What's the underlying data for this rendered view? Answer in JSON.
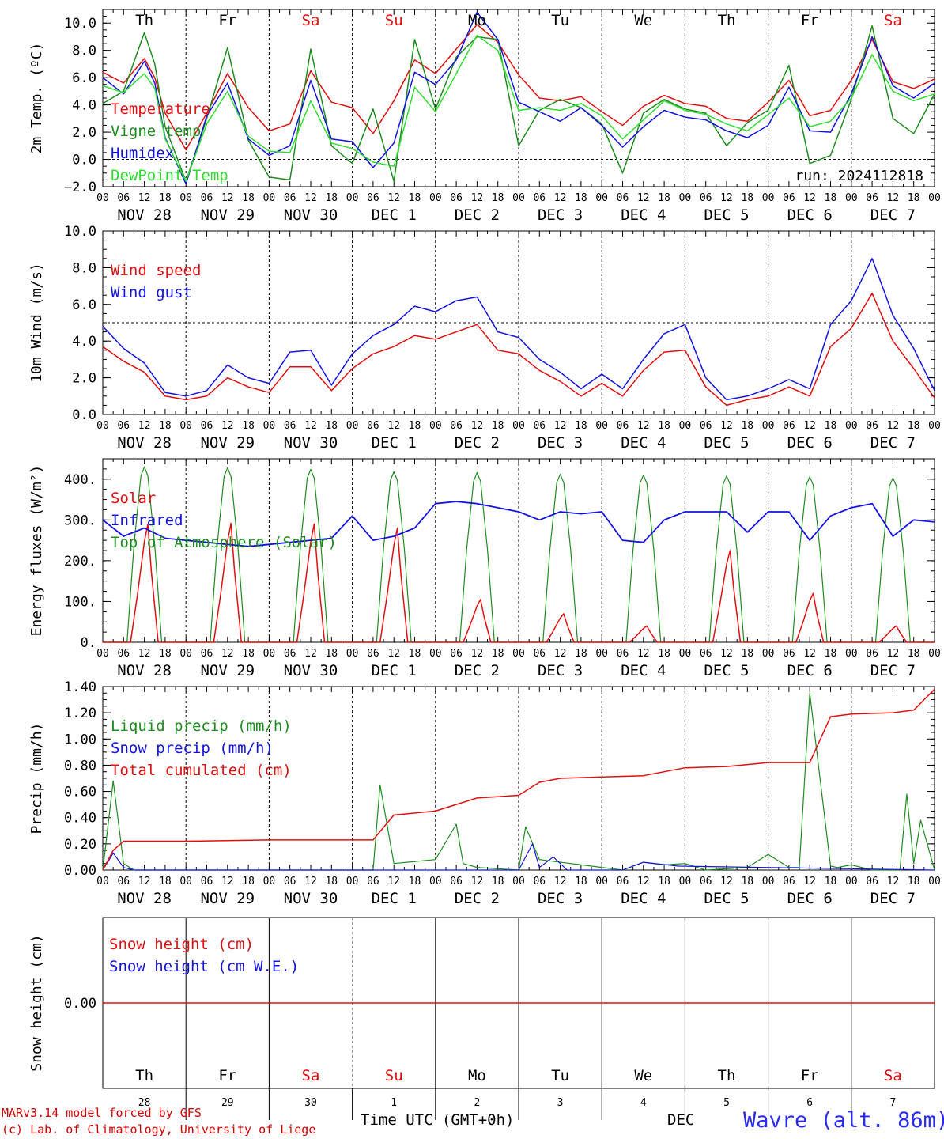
{
  "colors": {
    "red": "#e01010",
    "dkgreen": "#1e8c1e",
    "blue": "#1414e0",
    "ltgreen": "#32dc32",
    "weekend": "#e01010",
    "weekday": "#000000"
  },
  "days": [
    {
      "name": "Th",
      "month": "NOV",
      "date": "28",
      "weekend": false
    },
    {
      "name": "Fr",
      "month": "NOV",
      "date": "29",
      "weekend": false
    },
    {
      "name": "Sa",
      "month": "NOV",
      "date": "30",
      "weekend": true
    },
    {
      "name": "Su",
      "month": "DEC",
      "date": "1",
      "weekend": true
    },
    {
      "name": "Mo",
      "month": "DEC",
      "date": "2",
      "weekend": false
    },
    {
      "name": "Tu",
      "month": "DEC",
      "date": "3",
      "weekend": false
    },
    {
      "name": "We",
      "month": "DEC",
      "date": "4",
      "weekend": false
    },
    {
      "name": "Th",
      "month": "DEC",
      "date": "5",
      "weekend": false
    },
    {
      "name": "Fr",
      "month": "DEC",
      "date": "6",
      "weekend": false
    },
    {
      "name": "Sa",
      "month": "DEC",
      "date": "7",
      "weekend": true
    }
  ],
  "hour_ticks": [
    "00",
    "06",
    "12",
    "18"
  ],
  "footer": {
    "model": "MARv3.14 model forced by GFS",
    "credit": "(c) Lab. of Climatology, University of Liege",
    "xlabel": "Time UTC (GMT+0h)",
    "month": "DEC",
    "station": "Wavre (alt. 86m)"
  },
  "chart_data": [
    {
      "type": "line",
      "ylabel": "2m Temp. (ºC)",
      "ylim": [
        -2,
        11
      ],
      "yticks": [
        -2,
        0,
        2,
        4,
        6,
        8,
        10
      ],
      "ytick_labels": [
        "−2.0",
        "0.0",
        "2.0",
        "4.0",
        "6.0",
        "8.0",
        "10.0"
      ],
      "refline": 0,
      "annotation": "run: 2024112818",
      "x_hours": [
        0,
        6,
        12,
        15,
        18,
        24,
        30,
        36,
        42,
        48,
        54,
        60,
        66,
        72,
        78,
        84,
        90,
        96,
        102,
        108,
        114,
        120,
        126,
        132,
        138,
        144,
        150,
        156,
        162,
        168,
        174,
        180,
        186,
        192,
        198,
        204,
        210,
        216,
        222,
        228,
        234,
        240
      ],
      "series": [
        {
          "name": "Temperature",
          "color": "red",
          "values": [
            6.4,
            5.6,
            7.4,
            6.0,
            3.4,
            0.7,
            3.4,
            6.3,
            3.8,
            2.1,
            2.6,
            6.5,
            4.2,
            3.8,
            1.9,
            4.3,
            7.3,
            6.3,
            8.1,
            9.9,
            8.6,
            6.2,
            4.5,
            4.3,
            4.6,
            3.5,
            2.5,
            3.9,
            4.7,
            4.1,
            3.9,
            3.0,
            2.8,
            4.2,
            5.8,
            3.2,
            3.6,
            5.8,
            8.8,
            5.7,
            5.2,
            5.9
          ]
        },
        {
          "name": "Vigne temp",
          "color": "dkgreen",
          "values": [
            4.1,
            5.0,
            9.3,
            7.0,
            2.4,
            -1.6,
            3.0,
            8.2,
            1.4,
            -1.3,
            -1.5,
            8.1,
            1.0,
            -0.3,
            3.7,
            -1.6,
            8.8,
            3.7,
            7.5,
            9.0,
            8.8,
            1.0,
            3.6,
            4.4,
            3.8,
            2.6,
            -1.0,
            3.4,
            4.4,
            3.7,
            3.4,
            1.0,
            2.7,
            3.6,
            6.9,
            -0.3,
            0.3,
            4.4,
            9.8,
            3.0,
            1.9,
            4.8
          ]
        },
        {
          "name": "Humidex",
          "color": "blue",
          "values": [
            6.0,
            4.8,
            7.2,
            5.6,
            1.6,
            -1.8,
            3.2,
            5.6,
            1.5,
            0.3,
            1.0,
            5.8,
            1.5,
            1.3,
            -0.6,
            1.2,
            6.4,
            5.5,
            7.3,
            10.8,
            8.8,
            4.2,
            3.5,
            2.8,
            3.8,
            2.5,
            0.9,
            2.4,
            3.6,
            3.1,
            2.9,
            2.1,
            1.6,
            2.5,
            5.3,
            2.1,
            2.0,
            4.8,
            9.0,
            5.4,
            4.5,
            5.6
          ]
        },
        {
          "name": "DewPoint Temp",
          "color": "ltgreen",
          "values": [
            5.4,
            4.9,
            6.3,
            5.2,
            1.5,
            -1.6,
            2.6,
            5.0,
            1.7,
            0.6,
            0.5,
            4.3,
            1.2,
            0.8,
            -0.2,
            -0.5,
            5.3,
            3.5,
            6.3,
            9.1,
            8.0,
            3.6,
            3.8,
            3.6,
            4.1,
            3.2,
            1.5,
            2.9,
            4.3,
            3.6,
            3.3,
            2.6,
            2.1,
            3.3,
            4.5,
            2.4,
            2.8,
            4.5,
            7.7,
            5.0,
            4.3,
            4.8
          ]
        }
      ]
    },
    {
      "type": "line",
      "ylabel": "10m Wind (m/s)",
      "ylim": [
        0,
        10
      ],
      "yticks": [
        0,
        2,
        4,
        6,
        8,
        10
      ],
      "ytick_labels": [
        "0.0",
        "2.0",
        "4.0",
        "6.0",
        "8.0",
        "10.0"
      ],
      "refline": 5,
      "x_hours": [
        0,
        6,
        12,
        18,
        24,
        30,
        36,
        42,
        48,
        54,
        60,
        66,
        72,
        78,
        84,
        90,
        96,
        102,
        108,
        114,
        120,
        126,
        132,
        138,
        144,
        150,
        156,
        162,
        168,
        174,
        180,
        186,
        192,
        198,
        204,
        210,
        216,
        222,
        228,
        234,
        240
      ],
      "series": [
        {
          "name": "Wind speed",
          "color": "red",
          "values": [
            3.7,
            2.9,
            2.3,
            1.0,
            0.8,
            1.0,
            2.0,
            1.5,
            1.2,
            2.6,
            2.6,
            1.3,
            2.5,
            3.3,
            3.7,
            4.3,
            4.1,
            4.5,
            4.9,
            3.5,
            3.3,
            2.4,
            1.8,
            1.0,
            1.7,
            1.0,
            2.4,
            3.4,
            3.5,
            1.5,
            0.5,
            0.8,
            1.0,
            1.5,
            1.0,
            3.7,
            4.7,
            6.6,
            4.0,
            2.5,
            0.9
          ]
        },
        {
          "name": "Wind gust",
          "color": "blue",
          "values": [
            4.8,
            3.6,
            2.8,
            1.2,
            1.0,
            1.3,
            2.7,
            2.0,
            1.7,
            3.4,
            3.5,
            1.6,
            3.3,
            4.3,
            4.9,
            5.9,
            5.6,
            6.2,
            6.4,
            4.5,
            4.2,
            3.0,
            2.3,
            1.4,
            2.2,
            1.4,
            3.0,
            4.4,
            4.9,
            2.0,
            0.8,
            1.0,
            1.4,
            1.9,
            1.4,
            4.9,
            6.2,
            8.5,
            5.4,
            3.6,
            1.3
          ]
        }
      ]
    },
    {
      "type": "line",
      "ylabel": "Energy fluxes (W/m²)",
      "ylim": [
        0,
        450
      ],
      "yticks": [
        0,
        100,
        200,
        300,
        400
      ],
      "ytick_labels": [
        "0.",
        "100.",
        "200.",
        "300.",
        "400."
      ],
      "series_names": [
        "Solar",
        "Infrared",
        "Top of Atmosphere (Solar)"
      ],
      "series_colors": [
        "red",
        "blue",
        "dkgreen"
      ],
      "toa_peaks": [
        430,
        428,
        424,
        418,
        416,
        412,
        410,
        408,
        406,
        403
      ],
      "solar_peaks": [
        290,
        292,
        290,
        280,
        105,
        70,
        40,
        225,
        120,
        40
      ],
      "infrared_hours": [
        0,
        6,
        12,
        18,
        24,
        30,
        36,
        42,
        48,
        54,
        60,
        66,
        72,
        78,
        84,
        90,
        96,
        102,
        108,
        114,
        120,
        126,
        132,
        138,
        144,
        150,
        156,
        162,
        168,
        174,
        180,
        186,
        192,
        198,
        204,
        210,
        216,
        222,
        228,
        234,
        240
      ],
      "infrared_values": [
        300,
        260,
        280,
        255,
        250,
        245,
        240,
        235,
        240,
        245,
        250,
        255,
        310,
        250,
        260,
        280,
        340,
        345,
        340,
        330,
        320,
        300,
        320,
        315,
        320,
        250,
        245,
        300,
        320,
        320,
        320,
        270,
        320,
        320,
        250,
        310,
        330,
        340,
        260,
        300,
        295
      ]
    },
    {
      "type": "line",
      "ylabel": "Precip (mm/h)",
      "ylim": [
        0,
        1.4
      ],
      "yticks": [
        0,
        0.2,
        0.4,
        0.6,
        0.8,
        1.0,
        1.2,
        1.4
      ],
      "ytick_labels": [
        "0.00",
        "0.20",
        "0.40",
        "0.60",
        "0.80",
        "1.00",
        "1.20",
        "1.40"
      ],
      "series_names": [
        "Liquid precip (mm/h)",
        "Snow precip (mm/h)",
        "Total cumulated (cm)"
      ],
      "series_colors": [
        "dkgreen",
        "blue",
        "red"
      ],
      "total_cumulated": {
        "x_hours": [
          0,
          3,
          6,
          24,
          48,
          66,
          72,
          78,
          84,
          96,
          102,
          108,
          114,
          120,
          126,
          132,
          144,
          156,
          168,
          180,
          192,
          198,
          204,
          210,
          216,
          228,
          234,
          240
        ],
        "values": [
          0,
          0.15,
          0.22,
          0.22,
          0.23,
          0.23,
          0.23,
          0.23,
          0.42,
          0.45,
          0.5,
          0.55,
          0.56,
          0.57,
          0.67,
          0.7,
          0.71,
          0.72,
          0.78,
          0.79,
          0.82,
          0.82,
          0.82,
          1.17,
          1.19,
          1.2,
          1.22,
          1.38
        ]
      },
      "liquid_precip": {
        "x_hours": [
          0,
          3,
          6,
          9,
          78,
          80,
          84,
          96,
          102,
          104,
          108,
          120,
          122,
          126,
          150,
          156,
          162,
          168,
          174,
          186,
          192,
          198,
          201,
          204,
          210,
          212,
          216,
          222,
          230,
          232,
          234,
          236,
          240
        ],
        "values": [
          0,
          0.68,
          0.05,
          0,
          0,
          0.65,
          0.05,
          0.08,
          0.35,
          0.05,
          0.02,
          0,
          0.33,
          0.08,
          0,
          0.06,
          0.04,
          0.05,
          0,
          0.02,
          0.12,
          0.02,
          0.02,
          1.35,
          0.03,
          0.02,
          0.04,
          0,
          0,
          0.58,
          0.05,
          0.38,
          0
        ]
      },
      "snow_precip": {
        "x_hours": [
          0,
          3,
          6,
          9,
          120,
          124,
          126,
          130,
          134,
          150,
          156,
          166,
          240
        ],
        "values": [
          0,
          0.13,
          0.02,
          0,
          0,
          0.2,
          0.02,
          0.1,
          0,
          0,
          0.06,
          0.03,
          0
        ]
      }
    },
    {
      "type": "line",
      "ylabel": "Snow height (cm)",
      "ylim": [
        -1,
        1
      ],
      "yticks": [
        0
      ],
      "ytick_labels": [
        "0.00"
      ],
      "series_names": [
        "Snow height (cm)",
        "Snow height (cm W.E.)"
      ],
      "series_colors": [
        "red",
        "blue"
      ],
      "values": [
        0,
        0
      ]
    }
  ]
}
